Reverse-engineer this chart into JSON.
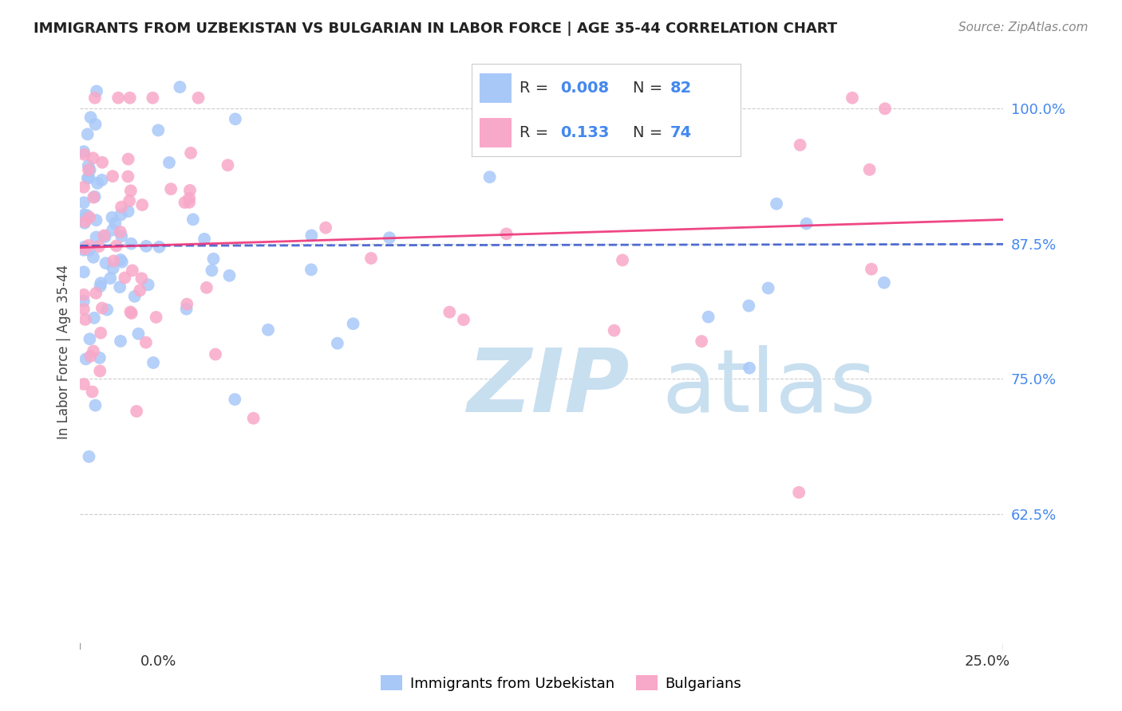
{
  "title": "IMMIGRANTS FROM UZBEKISTAN VS BULGARIAN IN LABOR FORCE | AGE 35-44 CORRELATION CHART",
  "source": "Source: ZipAtlas.com",
  "ylabel": "In Labor Force | Age 35-44",
  "xlim": [
    0.0,
    0.25
  ],
  "ylim": [
    0.5,
    1.05
  ],
  "yticks": [
    0.625,
    0.75,
    0.875,
    1.0
  ],
  "ytick_labels": [
    "62.5%",
    "75.0%",
    "87.5%",
    "100.0%"
  ],
  "uzbek_color": "#a8c8f8",
  "bulgar_color": "#f8a8c8",
  "uzbek_line_color": "#3355cc",
  "bulgar_line_color": "#ee3377",
  "background_color": "#ffffff",
  "watermark_zip": "ZIP",
  "watermark_atlas": "atlas",
  "watermark_color_zip": "#c8dff0",
  "watermark_color_atlas": "#c8dff0",
  "r_uzbek": 0.008,
  "n_uzbek": 82,
  "r_bulgar": 0.133,
  "n_bulgar": 74,
  "legend_label_uzbek": "Immigrants from Uzbekistan",
  "legend_label_bulgar": "Bulgarians",
  "title_fontsize": 13,
  "source_fontsize": 11,
  "tick_label_fontsize": 13,
  "legend_fontsize": 14
}
